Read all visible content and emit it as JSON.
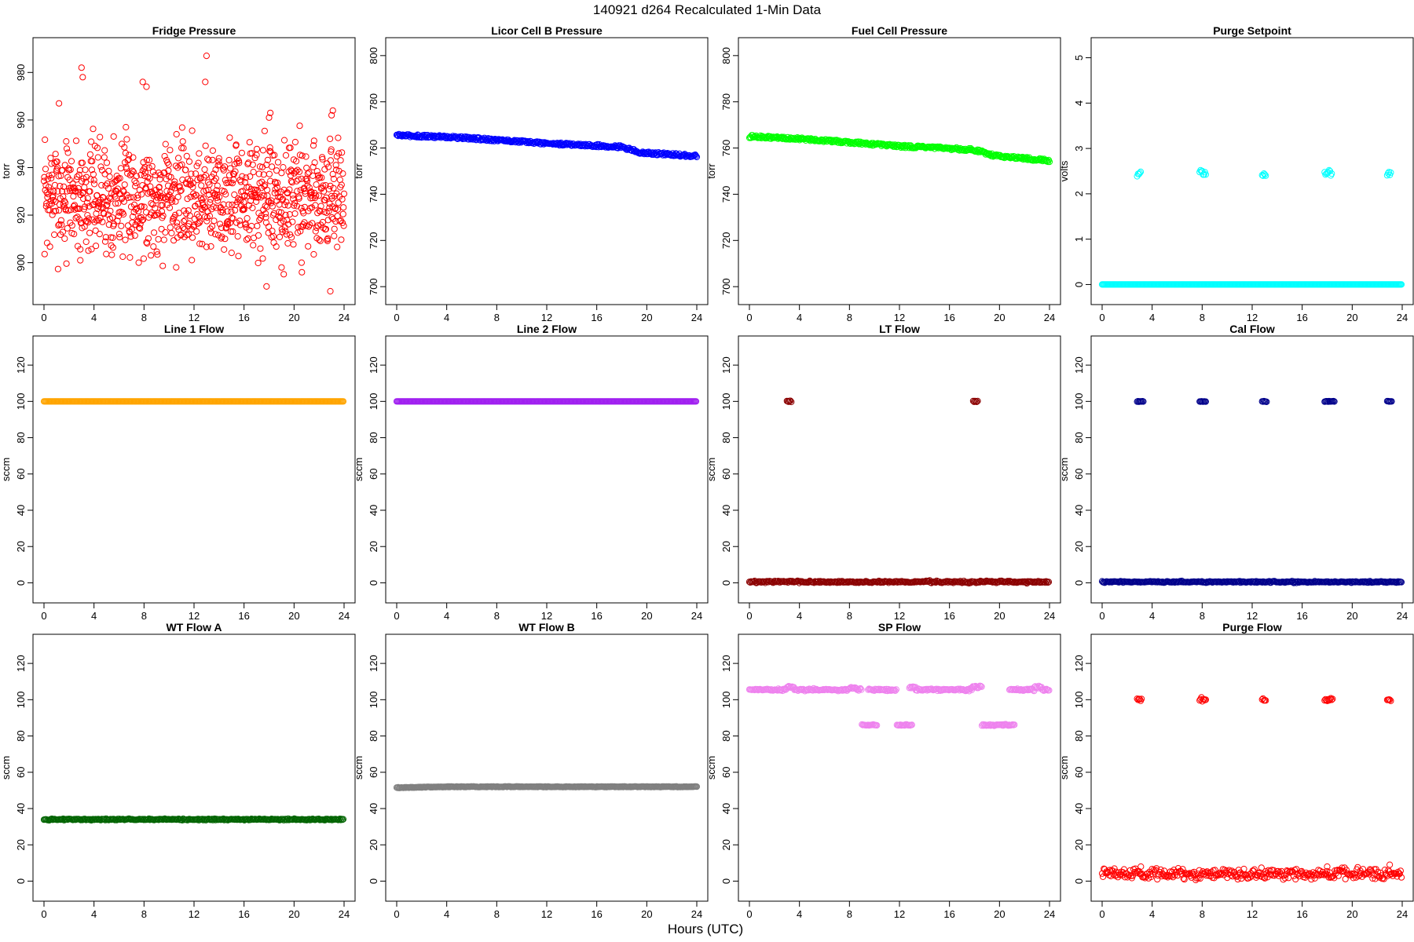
{
  "page": {
    "title": "140921    d264    Recalculated 1-Min Data",
    "xlabel": "Hours (UTC)"
  },
  "chart_data": [
    {
      "type": "scatter",
      "title": "Fridge Pressure",
      "ylabel": "torr",
      "xlim": [
        0,
        24
      ],
      "ylim": [
        887,
        990
      ],
      "xticks": [
        0,
        4,
        8,
        12,
        16,
        20,
        24
      ],
      "yticks": [
        900,
        920,
        940,
        960,
        980
      ],
      "color": "#ff0000",
      "filled": false,
      "series": [
        {
          "segments": [
            [
              0,
              24,
              928,
              12
            ]
          ],
          "outliers": [
            [
              3.0,
              982
            ],
            [
              7.9,
              976
            ],
            [
              13.0,
              987
            ],
            [
              18.1,
              963
            ],
            [
              23.1,
              964
            ],
            [
              3.1,
              978
            ],
            [
              8.2,
              974
            ],
            [
              12.9,
              976
            ],
            [
              18.0,
              961
            ],
            [
              23.0,
              962
            ],
            [
              1.2,
              967
            ],
            [
              2.9,
              901
            ],
            [
              17.8,
              890
            ],
            [
              22.9,
              888
            ],
            [
              19.0,
              898
            ],
            [
              20.6,
              900
            ]
          ]
        }
      ]
    },
    {
      "type": "scatter",
      "title": "Licor Cell B Pressure",
      "ylabel": "torr",
      "xlim": [
        0,
        24
      ],
      "ylim": [
        697,
        803
      ],
      "xticks": [
        0,
        4,
        8,
        12,
        16,
        20,
        24
      ],
      "yticks": [
        700,
        720,
        740,
        760,
        780,
        800
      ],
      "color": "#0000ff",
      "filled": false,
      "series": [
        {
          "curve": [
            [
              0,
              765.5
            ],
            [
              4,
              764.8
            ],
            [
              8,
              763.5
            ],
            [
              12,
              762.0
            ],
            [
              16,
              761.0
            ],
            [
              18,
              760.5
            ],
            [
              19.5,
              758.0
            ],
            [
              24,
              756.5
            ]
          ],
          "noise": 0.6
        }
      ]
    },
    {
      "type": "scatter",
      "title": "Fuel Cell Pressure",
      "ylabel": "torr",
      "xlim": [
        0,
        24
      ],
      "ylim": [
        697,
        803
      ],
      "xticks": [
        0,
        4,
        8,
        12,
        16,
        20,
        24
      ],
      "yticks": [
        700,
        720,
        740,
        760,
        780,
        800
      ],
      "color": "#00ff00",
      "filled": false,
      "series": [
        {
          "curve": [
            [
              0,
              765.0
            ],
            [
              4,
              764.0
            ],
            [
              8,
              762.5
            ],
            [
              12,
              760.8
            ],
            [
              16,
              759.8
            ],
            [
              18,
              759.2
            ],
            [
              19.5,
              756.8
            ],
            [
              24,
              754.5
            ]
          ],
          "noise": 0.6
        }
      ]
    },
    {
      "type": "scatter",
      "title": "Purge Setpoint",
      "ylabel": "volts",
      "xlim": [
        0,
        24
      ],
      "ylim": [
        -0.2,
        5.2
      ],
      "xticks": [
        0,
        4,
        8,
        12,
        16,
        20,
        24
      ],
      "yticks": [
        0,
        1,
        2,
        3,
        4,
        5
      ],
      "color": "#00ffff",
      "filled": false,
      "series": [
        {
          "segments": [
            [
              0,
              24,
              0,
              0
            ],
            [
              2.8,
              3.1,
              2.45,
              0.04
            ],
            [
              7.8,
              8.3,
              2.47,
              0.05
            ],
            [
              12.8,
              13.1,
              2.44,
              0.03
            ],
            [
              17.8,
              18.4,
              2.47,
              0.05
            ],
            [
              22.8,
              23.1,
              2.45,
              0.03
            ]
          ]
        }
      ]
    },
    {
      "type": "scatter",
      "title": "Line 1 Flow",
      "ylabel": "sccm",
      "xlim": [
        0,
        24
      ],
      "ylim": [
        -5,
        130
      ],
      "xticks": [
        0,
        4,
        8,
        12,
        16,
        20,
        24
      ],
      "yticks": [
        0,
        20,
        40,
        60,
        80,
        100,
        120
      ],
      "color": "#ffa500",
      "filled": false,
      "series": [
        {
          "segments": [
            [
              0,
              24,
              100,
              0
            ]
          ]
        }
      ]
    },
    {
      "type": "scatter",
      "title": "Line 2 Flow",
      "ylabel": "sccm",
      "xlim": [
        0,
        24
      ],
      "ylim": [
        -5,
        130
      ],
      "xticks": [
        0,
        4,
        8,
        12,
        16,
        20,
        24
      ],
      "yticks": [
        0,
        20,
        40,
        60,
        80,
        100,
        120
      ],
      "color": "#a020f0",
      "filled": false,
      "series": [
        {
          "segments": [
            [
              0,
              24,
              100,
              0
            ]
          ]
        }
      ]
    },
    {
      "type": "scatter",
      "title": "LT Flow",
      "ylabel": "sccm",
      "xlim": [
        0,
        24
      ],
      "ylim": [
        -5,
        130
      ],
      "xticks": [
        0,
        4,
        8,
        12,
        16,
        20,
        24
      ],
      "yticks": [
        0,
        20,
        40,
        60,
        80,
        100,
        120
      ],
      "color": "#8b0000",
      "filled": false,
      "series": [
        {
          "segments": [
            [
              0,
              24,
              0.5,
              0.3
            ],
            [
              3.0,
              3.4,
              100,
              0.2
            ],
            [
              17.9,
              18.3,
              100,
              0.2
            ]
          ]
        }
      ]
    },
    {
      "type": "scatter",
      "title": "Cal Flow",
      "ylabel": "sccm",
      "xlim": [
        0,
        24
      ],
      "ylim": [
        -5,
        130
      ],
      "xticks": [
        0,
        4,
        8,
        12,
        16,
        20,
        24
      ],
      "yticks": [
        0,
        20,
        40,
        60,
        80,
        100,
        120
      ],
      "color": "#00008b",
      "filled": false,
      "series": [
        {
          "segments": [
            [
              0,
              24,
              0.5,
              0.2
            ],
            [
              2.8,
              3.3,
              100,
              0.1
            ],
            [
              7.8,
              8.3,
              100,
              0.1
            ],
            [
              12.8,
              13.2,
              100,
              0.1
            ],
            [
              17.8,
              18.6,
              100,
              0.1
            ],
            [
              22.8,
              23.2,
              100,
              0.1
            ]
          ]
        }
      ]
    },
    {
      "type": "scatter",
      "title": "WT Flow A",
      "ylabel": "sccm",
      "xlim": [
        0,
        24
      ],
      "ylim": [
        -5,
        130
      ],
      "xticks": [
        0,
        4,
        8,
        12,
        16,
        20,
        24
      ],
      "yticks": [
        0,
        20,
        40,
        60,
        80,
        100,
        120
      ],
      "color": "#006400",
      "filled": false,
      "series": [
        {
          "segments": [
            [
              0,
              24,
              34,
              0.2
            ]
          ]
        }
      ]
    },
    {
      "type": "scatter",
      "title": "WT Flow B",
      "ylabel": "sccm",
      "xlim": [
        0,
        24
      ],
      "ylim": [
        -5,
        130
      ],
      "xticks": [
        0,
        4,
        8,
        12,
        16,
        20,
        24
      ],
      "yticks": [
        0,
        20,
        40,
        60,
        80,
        100,
        120
      ],
      "color": "#808080",
      "filled": false,
      "series": [
        {
          "curve": [
            [
              0,
              51.5
            ],
            [
              4,
              52.0
            ],
            [
              24,
              52.0
            ]
          ],
          "noise": 0.2
        }
      ]
    },
    {
      "type": "scatter",
      "title": "SP Flow",
      "ylabel": "sccm",
      "xlim": [
        0,
        24
      ],
      "ylim": [
        -5,
        130
      ],
      "xticks": [
        0,
        4,
        8,
        12,
        16,
        20,
        24
      ],
      "yticks": [
        0,
        20,
        40,
        60,
        80,
        100,
        120
      ],
      "color": "#ee82ee",
      "filled": false,
      "series": [
        {
          "segments": [
            [
              0,
              3.0,
              105.5,
              0.3
            ],
            [
              3.0,
              3.6,
              107,
              0.3
            ],
            [
              3.6,
              8.0,
              105.5,
              0.3
            ],
            [
              8.0,
              8.6,
              106.5,
              0.3
            ],
            [
              8.6,
              9.0,
              105.5,
              0.3
            ],
            [
              9.0,
              10.2,
              86,
              0.2
            ],
            [
              9.5,
              11.8,
              105.5,
              0.3
            ],
            [
              11.8,
              13.0,
              86,
              0.2
            ],
            [
              12.8,
              13.3,
              107,
              0.3
            ],
            [
              13.3,
              17.8,
              105.5,
              0.3
            ],
            [
              17.8,
              18.6,
              107,
              0.3
            ],
            [
              18.6,
              21.2,
              86,
              0.2
            ],
            [
              20.8,
              22.8,
              105.5,
              0.3
            ],
            [
              22.8,
              23.4,
              107,
              0.3
            ],
            [
              23.4,
              24,
              105.5,
              0.3
            ]
          ]
        }
      ]
    },
    {
      "type": "scatter",
      "title": "Purge Flow",
      "ylabel": "sccm",
      "xlim": [
        0,
        24
      ],
      "ylim": [
        -5,
        130
      ],
      "xticks": [
        0,
        4,
        8,
        12,
        16,
        20,
        24
      ],
      "yticks": [
        0,
        20,
        40,
        60,
        80,
        100,
        120
      ],
      "color": "#ff0000",
      "filled": false,
      "series": [
        {
          "segments": [
            [
              0,
              24,
              4,
              1.5
            ],
            [
              2.8,
              3.2,
              100,
              0.6
            ],
            [
              7.8,
              8.3,
              100,
              0.6
            ],
            [
              12.8,
              13.1,
              100,
              0.4
            ],
            [
              17.8,
              18.5,
              100,
              0.6
            ],
            [
              22.8,
              23.1,
              100,
              0.5
            ]
          ],
          "outliers": [
            [
              3.1,
              8
            ],
            [
              18.0,
              8
            ],
            [
              23.0,
              9
            ]
          ]
        }
      ]
    }
  ]
}
